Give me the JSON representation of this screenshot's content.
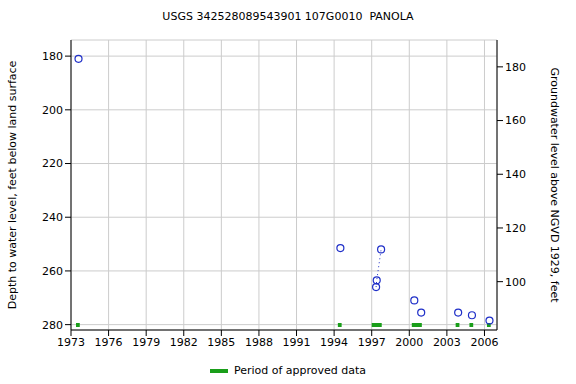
{
  "chart_data": {
    "type": "scatter",
    "title": "USGS 342528089543901 107G0010  PANOLA",
    "y_label": "Depth to water level, feet below land surface",
    "y2_label": "Groundwater level above NGVD 1929, feet",
    "xlim": [
      1973,
      2007
    ],
    "xticks": [
      1973,
      1976,
      1979,
      1982,
      1985,
      1988,
      1991,
      1994,
      1997,
      2000,
      2003,
      2006
    ],
    "ylim": [
      174,
      282
    ],
    "yticks": [
      180,
      200,
      220,
      240,
      260,
      280
    ],
    "y2lim": [
      82,
      190
    ],
    "y2ticks": [
      100,
      120,
      140,
      160,
      180
    ],
    "grid": true,
    "color": "#1f2fc8",
    "marker": "circle",
    "line_style": "dotted",
    "groups": [
      {
        "x": [
          1973.6
        ],
        "values": [
          181
        ]
      },
      {
        "x": [
          1994.5
        ],
        "values": [
          251.5
        ]
      },
      {
        "x": [
          1997.35,
          1997.4,
          1997.75
        ],
        "values": [
          266,
          263.5,
          252
        ]
      },
      {
        "x": [
          2000.4
        ],
        "values": [
          271
        ]
      },
      {
        "x": [
          2000.95
        ],
        "values": [
          275.5
        ]
      },
      {
        "x": [
          2003.9
        ],
        "values": [
          275.5
        ]
      },
      {
        "x": [
          2005.0
        ],
        "values": [
          276.5
        ]
      },
      {
        "x": [
          2006.4
        ],
        "values": [
          278.5
        ]
      }
    ],
    "approved_periods": {
      "name": "Period of approved data",
      "color": "#1a9e1a",
      "ranges": [
        [
          1973.4,
          1973.7
        ],
        [
          1994.3,
          1994.6
        ],
        [
          1997.0,
          1997.8
        ],
        [
          2000.2,
          2001.0
        ],
        [
          2003.7,
          2004.0
        ],
        [
          2004.8,
          2005.1
        ],
        [
          2006.2,
          2006.5
        ]
      ]
    }
  }
}
